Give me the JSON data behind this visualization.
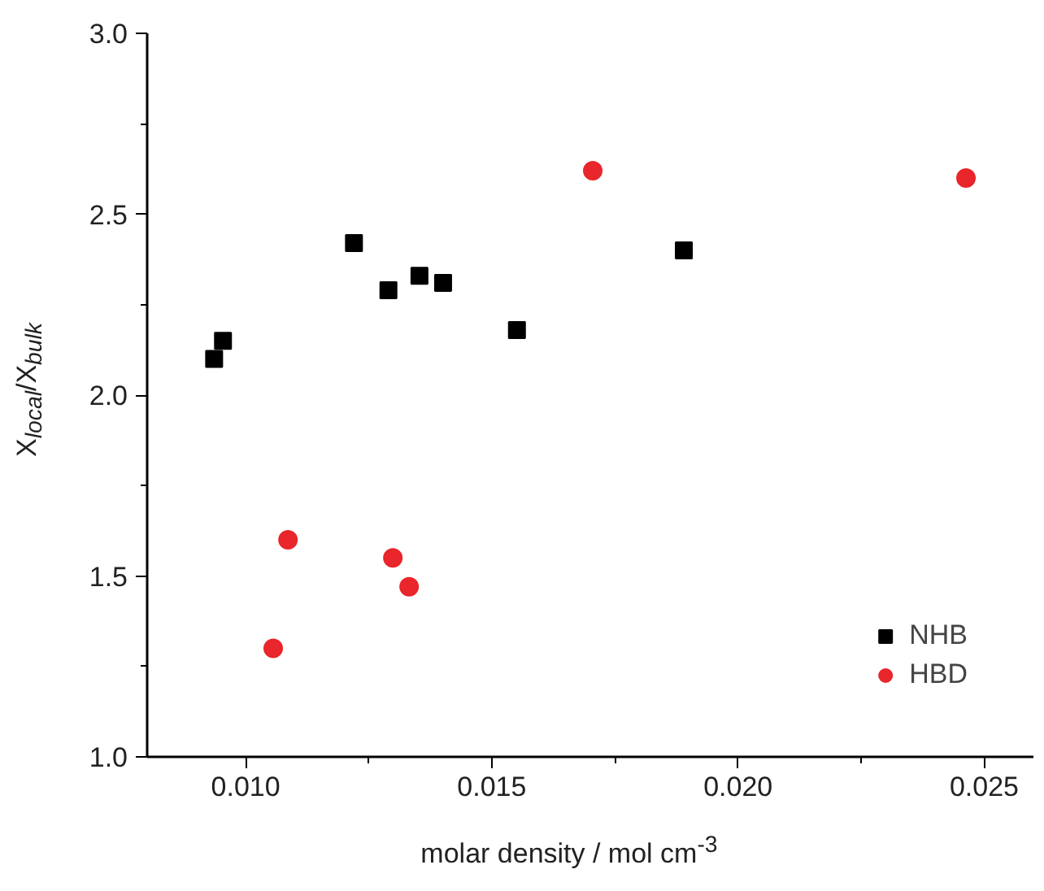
{
  "chart_data": {
    "type": "scatter",
    "xlabel": "molar density / mol cm$^{-3}$",
    "ylabel": "X$_{local}$/X$_{bulk}$",
    "xlim": [
      0.008,
      0.026
    ],
    "xticks": [
      {
        "value": 0.01,
        "label": "0.010"
      },
      0.015,
      {
        "value": 0.02,
        "label": "0.020"
      },
      0.025
    ],
    "ylim": [
      1.0,
      3.0
    ],
    "yticks": [
      {
        "value": 1,
        "label": "1.0"
      },
      1.5,
      {
        "value": 2,
        "label": "2.0"
      },
      2.5,
      {
        "value": 3,
        "label": "3.0"
      }
    ],
    "grid": false,
    "legend": "bottom right",
    "series": [
      {
        "name": "NHB",
        "color": "#000000",
        "marker": "square",
        "x": [
          0.00936,
          0.00954,
          0.0122,
          0.0129,
          0.01353,
          0.01401,
          0.01551,
          0.0189
        ],
        "values": [
          2.1,
          2.15,
          2.42,
          2.29,
          2.33,
          2.31,
          2.18,
          2.4
        ]
      },
      {
        "name": "HBD",
        "color": "#e8262b",
        "marker": "circle",
        "x": [
          0.01705,
          0.02463,
          0.01086,
          0.01056,
          0.01299,
          0.01332
        ],
        "values": [
          2.62,
          2.6,
          1.6,
          1.3,
          1.55,
          1.47
        ]
      }
    ]
  }
}
